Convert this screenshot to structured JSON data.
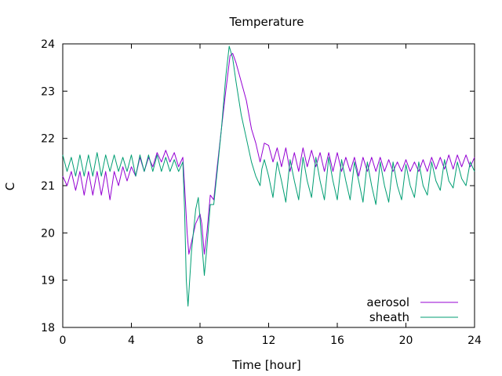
{
  "chart_data": {
    "type": "line",
    "title": "Temperature",
    "xlabel": "Time [hour]",
    "ylabel": "C",
    "xlim": [
      0,
      24
    ],
    "ylim": [
      18,
      24
    ],
    "xticks": [
      0,
      4,
      8,
      12,
      16,
      20,
      24
    ],
    "yticks": [
      18,
      19,
      20,
      21,
      22,
      23,
      24
    ],
    "grid": false,
    "legend_position": "bottom-right",
    "series": [
      {
        "name": "aerosol",
        "color": "#9400d3",
        "points": [
          [
            0.0,
            21.2
          ],
          [
            0.25,
            21.0
          ],
          [
            0.5,
            21.3
          ],
          [
            0.75,
            20.9
          ],
          [
            1.0,
            21.3
          ],
          [
            1.25,
            20.8
          ],
          [
            1.5,
            21.3
          ],
          [
            1.75,
            20.8
          ],
          [
            2.0,
            21.3
          ],
          [
            2.25,
            20.8
          ],
          [
            2.5,
            21.3
          ],
          [
            2.75,
            20.7
          ],
          [
            3.0,
            21.3
          ],
          [
            3.25,
            21.0
          ],
          [
            3.5,
            21.4
          ],
          [
            3.75,
            21.1
          ],
          [
            4.0,
            21.4
          ],
          [
            4.25,
            21.2
          ],
          [
            4.5,
            21.6
          ],
          [
            4.75,
            21.3
          ],
          [
            5.0,
            21.6
          ],
          [
            5.25,
            21.4
          ],
          [
            5.5,
            21.7
          ],
          [
            5.75,
            21.5
          ],
          [
            6.0,
            21.75
          ],
          [
            6.25,
            21.5
          ],
          [
            6.5,
            21.7
          ],
          [
            6.75,
            21.4
          ],
          [
            7.0,
            21.6
          ],
          [
            7.1,
            21.0
          ],
          [
            7.25,
            20.0
          ],
          [
            7.35,
            19.55
          ],
          [
            7.5,
            19.8
          ],
          [
            7.75,
            20.2
          ],
          [
            8.0,
            20.4
          ],
          [
            8.1,
            20.2
          ],
          [
            8.25,
            19.55
          ],
          [
            8.4,
            20.0
          ],
          [
            8.6,
            20.8
          ],
          [
            8.8,
            20.7
          ],
          [
            9.0,
            21.4
          ],
          [
            9.25,
            22.2
          ],
          [
            9.5,
            23.0
          ],
          [
            9.75,
            23.75
          ],
          [
            9.9,
            23.8
          ],
          [
            10.1,
            23.6
          ],
          [
            10.4,
            23.2
          ],
          [
            10.7,
            22.8
          ],
          [
            11.0,
            22.2
          ],
          [
            11.25,
            21.9
          ],
          [
            11.5,
            21.5
          ],
          [
            11.75,
            21.9
          ],
          [
            12.0,
            21.85
          ],
          [
            12.25,
            21.5
          ],
          [
            12.5,
            21.8
          ],
          [
            12.75,
            21.4
          ],
          [
            13.0,
            21.8
          ],
          [
            13.25,
            21.3
          ],
          [
            13.5,
            21.7
          ],
          [
            13.75,
            21.3
          ],
          [
            14.0,
            21.8
          ],
          [
            14.25,
            21.4
          ],
          [
            14.5,
            21.75
          ],
          [
            14.75,
            21.4
          ],
          [
            15.0,
            21.7
          ],
          [
            15.25,
            21.3
          ],
          [
            15.5,
            21.7
          ],
          [
            15.75,
            21.3
          ],
          [
            16.0,
            21.7
          ],
          [
            16.25,
            21.3
          ],
          [
            16.5,
            21.6
          ],
          [
            16.75,
            21.3
          ],
          [
            17.0,
            21.6
          ],
          [
            17.25,
            21.2
          ],
          [
            17.5,
            21.6
          ],
          [
            17.75,
            21.3
          ],
          [
            18.0,
            21.6
          ],
          [
            18.25,
            21.3
          ],
          [
            18.5,
            21.6
          ],
          [
            18.75,
            21.3
          ],
          [
            19.0,
            21.55
          ],
          [
            19.25,
            21.3
          ],
          [
            19.5,
            21.5
          ],
          [
            19.75,
            21.3
          ],
          [
            20.0,
            21.55
          ],
          [
            20.25,
            21.3
          ],
          [
            20.5,
            21.5
          ],
          [
            20.75,
            21.3
          ],
          [
            21.0,
            21.55
          ],
          [
            21.25,
            21.3
          ],
          [
            21.5,
            21.6
          ],
          [
            21.75,
            21.35
          ],
          [
            22.0,
            21.6
          ],
          [
            22.25,
            21.35
          ],
          [
            22.5,
            21.65
          ],
          [
            22.75,
            21.35
          ],
          [
            23.0,
            21.65
          ],
          [
            23.25,
            21.4
          ],
          [
            23.5,
            21.65
          ],
          [
            23.75,
            21.4
          ],
          [
            24.0,
            21.6
          ]
        ]
      },
      {
        "name": "sheath",
        "color": "#009e73",
        "points": [
          [
            0.0,
            21.65
          ],
          [
            0.25,
            21.3
          ],
          [
            0.5,
            21.6
          ],
          [
            0.75,
            21.2
          ],
          [
            1.0,
            21.65
          ],
          [
            1.25,
            21.2
          ],
          [
            1.5,
            21.65
          ],
          [
            1.75,
            21.2
          ],
          [
            2.0,
            21.7
          ],
          [
            2.25,
            21.2
          ],
          [
            2.5,
            21.65
          ],
          [
            2.75,
            21.3
          ],
          [
            3.0,
            21.65
          ],
          [
            3.25,
            21.3
          ],
          [
            3.5,
            21.6
          ],
          [
            3.75,
            21.3
          ],
          [
            4.0,
            21.65
          ],
          [
            4.25,
            21.2
          ],
          [
            4.5,
            21.65
          ],
          [
            4.75,
            21.3
          ],
          [
            5.0,
            21.65
          ],
          [
            5.25,
            21.3
          ],
          [
            5.5,
            21.65
          ],
          [
            5.75,
            21.3
          ],
          [
            6.0,
            21.6
          ],
          [
            6.25,
            21.3
          ],
          [
            6.5,
            21.55
          ],
          [
            6.75,
            21.3
          ],
          [
            7.0,
            21.5
          ],
          [
            7.1,
            20.5
          ],
          [
            7.2,
            19.0
          ],
          [
            7.3,
            18.45
          ],
          [
            7.5,
            19.6
          ],
          [
            7.75,
            20.5
          ],
          [
            7.9,
            20.75
          ],
          [
            8.0,
            20.3
          ],
          [
            8.25,
            19.1
          ],
          [
            8.4,
            19.7
          ],
          [
            8.6,
            20.6
          ],
          [
            8.8,
            20.6
          ],
          [
            9.0,
            21.3
          ],
          [
            9.25,
            22.2
          ],
          [
            9.5,
            23.3
          ],
          [
            9.7,
            23.95
          ],
          [
            9.9,
            23.7
          ],
          [
            10.1,
            23.2
          ],
          [
            10.4,
            22.5
          ],
          [
            10.7,
            22.0
          ],
          [
            11.0,
            21.5
          ],
          [
            11.25,
            21.2
          ],
          [
            11.5,
            21.0
          ],
          [
            11.6,
            21.35
          ],
          [
            11.75,
            21.55
          ],
          [
            12.0,
            21.2
          ],
          [
            12.25,
            20.75
          ],
          [
            12.5,
            21.5
          ],
          [
            12.75,
            21.1
          ],
          [
            13.0,
            20.65
          ],
          [
            13.25,
            21.55
          ],
          [
            13.5,
            21.1
          ],
          [
            13.75,
            20.7
          ],
          [
            14.0,
            21.6
          ],
          [
            14.25,
            21.1
          ],
          [
            14.5,
            20.75
          ],
          [
            14.75,
            21.6
          ],
          [
            15.0,
            21.1
          ],
          [
            15.25,
            20.7
          ],
          [
            15.5,
            21.6
          ],
          [
            15.75,
            21.1
          ],
          [
            16.0,
            20.7
          ],
          [
            16.25,
            21.55
          ],
          [
            16.5,
            21.1
          ],
          [
            16.75,
            20.7
          ],
          [
            17.0,
            21.5
          ],
          [
            17.25,
            21.1
          ],
          [
            17.5,
            20.65
          ],
          [
            17.75,
            21.5
          ],
          [
            18.0,
            21.0
          ],
          [
            18.25,
            20.6
          ],
          [
            18.5,
            21.5
          ],
          [
            18.75,
            21.0
          ],
          [
            19.0,
            20.65
          ],
          [
            19.25,
            21.5
          ],
          [
            19.5,
            21.0
          ],
          [
            19.75,
            20.7
          ],
          [
            20.0,
            21.45
          ],
          [
            20.25,
            21.0
          ],
          [
            20.5,
            20.75
          ],
          [
            20.75,
            21.5
          ],
          [
            21.0,
            21.0
          ],
          [
            21.25,
            20.8
          ],
          [
            21.5,
            21.5
          ],
          [
            21.75,
            21.1
          ],
          [
            22.0,
            20.9
          ],
          [
            22.25,
            21.55
          ],
          [
            22.5,
            21.1
          ],
          [
            22.75,
            20.95
          ],
          [
            23.0,
            21.5
          ],
          [
            23.25,
            21.15
          ],
          [
            23.5,
            21.0
          ],
          [
            23.75,
            21.5
          ],
          [
            24.0,
            21.3
          ]
        ]
      }
    ]
  }
}
